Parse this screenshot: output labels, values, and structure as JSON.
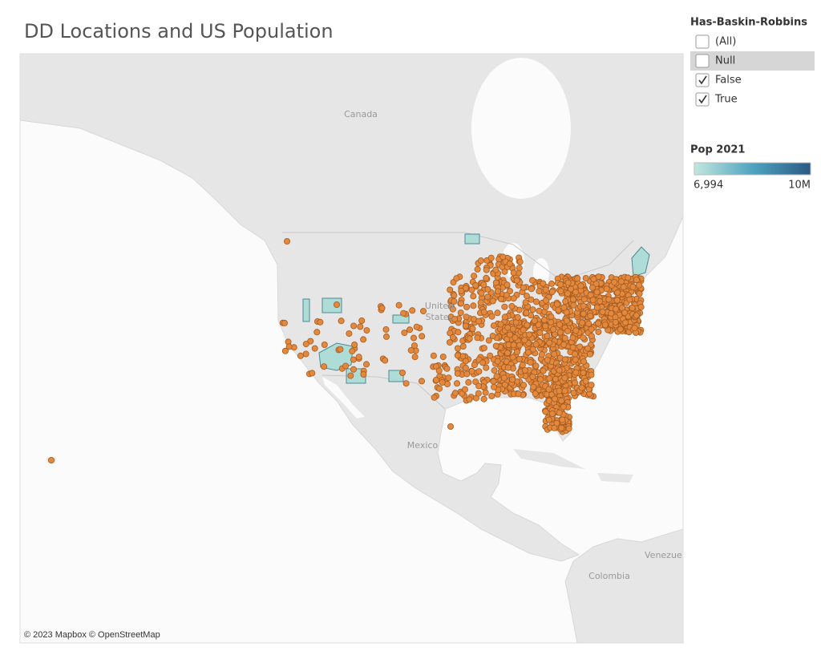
{
  "title": "DD Locations and US Population",
  "filter": {
    "title": "Has-Baskin-Robbins",
    "options": [
      {
        "label": "(All)",
        "checked": false
      },
      {
        "label": "Null",
        "checked": false
      },
      {
        "label": "False",
        "checked": true
      },
      {
        "label": "True",
        "checked": true
      }
    ]
  },
  "color_legend": {
    "title": "Pop 2021",
    "min": "6,994",
    "max": "10M"
  },
  "map": {
    "labels": [
      "Canada",
      "United",
      "States",
      "Mexico",
      "Venezue",
      "Colombia"
    ],
    "attribution": "© 2023 Mapbox © OpenStreetMap"
  }
}
